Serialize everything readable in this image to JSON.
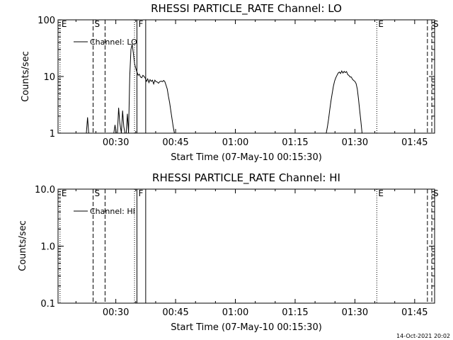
{
  "chart_data": [
    {
      "type": "line",
      "title": "RHESSI PARTICLE_RATE Channel: LO",
      "xlabel": "Start Time (07-May-10 00:15:30)",
      "ylabel": "Counts/sec",
      "yscale": "log",
      "xlim": [
        15.5,
        110
      ],
      "ylim": [
        1,
        100
      ],
      "x_ticks": [
        {
          "t": 30,
          "label": "00:30"
        },
        {
          "t": 45,
          "label": "00:45"
        },
        {
          "t": 60,
          "label": "01:00"
        },
        {
          "t": 75,
          "label": "01:15"
        },
        {
          "t": 90,
          "label": "01:30"
        },
        {
          "t": 105,
          "label": "01:45"
        }
      ],
      "y_ticks": [
        {
          "v": 1,
          "label": "1"
        },
        {
          "v": 10,
          "label": "10"
        },
        {
          "v": 100,
          "label": "100"
        }
      ],
      "legend": {
        "position": "top-left",
        "entries": [
          "Channel: LO"
        ]
      },
      "series": [
        {
          "name": "Channel: LO",
          "x": [
            22.6,
            22.9,
            23.2,
            29.5,
            29.8,
            30.1,
            30.4,
            30.7,
            31.0,
            31.4,
            31.7,
            32.0,
            32.3,
            32.6,
            32.9,
            33.2,
            33.5,
            33.8,
            34.1,
            34.4,
            34.7,
            35.0,
            35.3,
            35.6,
            35.9,
            36.2,
            36.5,
            36.8,
            37.1,
            37.4,
            37.7,
            38.0,
            38.3,
            38.6,
            38.9,
            39.2,
            39.5,
            39.8,
            40.1,
            40.4,
            40.7,
            41.0,
            41.4,
            41.7,
            42.0,
            42.3,
            42.6,
            42.9,
            43.2,
            43.5,
            43.8,
            44.1,
            44.4,
            44.7
          ],
          "y": [
            1,
            1.9,
            1,
            1,
            1.4,
            1,
            1,
            2.8,
            1.5,
            1,
            2.5,
            1.3,
            1,
            1,
            2.2,
            1,
            10,
            30,
            37,
            26,
            17,
            14,
            12,
            10.5,
            11,
            9.8,
            9.5,
            10.5,
            10,
            9.3,
            8.2,
            9.1,
            7.8,
            8.8,
            8.2,
            8.6,
            7.4,
            8.6,
            8.1,
            8.0,
            7.6,
            8.1,
            8.3,
            8.1,
            8.5,
            8.1,
            7.0,
            6.0,
            4.5,
            3.5,
            2.5,
            1.8,
            1.3,
            1
          ]
        },
        {
          "name": "Channel: LO",
          "x": [
            82.8,
            83.1,
            83.4,
            83.7,
            84.0,
            84.3,
            84.6,
            84.9,
            85.2,
            85.5,
            85.8,
            86.1,
            86.4,
            86.7,
            87.0,
            87.3,
            87.6,
            87.9,
            88.2,
            88.5,
            88.8,
            89.1,
            89.4,
            89.7,
            90.0,
            90.3,
            90.6,
            90.9,
            91.2,
            91.5,
            91.8
          ],
          "y": [
            1,
            1.3,
            1.8,
            2.6,
            3.7,
            5,
            6.7,
            8.3,
            9.5,
            10.5,
            11.5,
            12,
            11.3,
            12.5,
            11.5,
            12.3,
            11.7,
            12.2,
            10.8,
            10.4,
            9.8,
            9.8,
            8.9,
            8.5,
            8.2,
            7.5,
            6,
            4,
            2.5,
            1.6,
            1
          ]
        }
      ],
      "markers": [
        {
          "t": 16,
          "label": "E",
          "style": "dotted"
        },
        {
          "t": 24.3,
          "label": "S",
          "style": "dashed"
        },
        {
          "t": 27.3,
          "label": "",
          "style": "dashed"
        },
        {
          "t": 34.7,
          "label": "",
          "style": "dotted"
        },
        {
          "t": 35.3,
          "label": "F",
          "style": "solid"
        },
        {
          "t": 37.5,
          "label": "",
          "style": "solid"
        },
        {
          "t": 95.5,
          "label": "E",
          "style": "dotted"
        },
        {
          "t": 108.2,
          "label": "",
          "style": "dashed"
        },
        {
          "t": 109.3,
          "label": "S",
          "style": "dashed"
        }
      ]
    },
    {
      "type": "line",
      "title": "RHESSI PARTICLE_RATE Channel: HI",
      "xlabel": "Start Time (07-May-10 00:15:30)",
      "ylabel": "Counts/sec",
      "yscale": "log",
      "xlim": [
        15.5,
        110
      ],
      "ylim": [
        0.1,
        10
      ],
      "x_ticks": [
        {
          "t": 30,
          "label": "00:30"
        },
        {
          "t": 45,
          "label": "00:45"
        },
        {
          "t": 60,
          "label": "01:00"
        },
        {
          "t": 75,
          "label": "01:15"
        },
        {
          "t": 90,
          "label": "01:30"
        },
        {
          "t": 105,
          "label": "01:45"
        }
      ],
      "y_ticks": [
        {
          "v": 0.1,
          "label": "0.1"
        },
        {
          "v": 1,
          "label": "1.0"
        },
        {
          "v": 10,
          "label": "10.0"
        }
      ],
      "legend": {
        "position": "top-left",
        "entries": [
          "Channel: HI"
        ]
      },
      "series": [],
      "markers": [
        {
          "t": 16,
          "label": "E",
          "style": "dotted"
        },
        {
          "t": 24.3,
          "label": "S",
          "style": "dashed"
        },
        {
          "t": 27.3,
          "label": "",
          "style": "dashed"
        },
        {
          "t": 34.7,
          "label": "",
          "style": "dotted"
        },
        {
          "t": 35.3,
          "label": "F",
          "style": "solid"
        },
        {
          "t": 37.5,
          "label": "",
          "style": "solid"
        },
        {
          "t": 95.5,
          "label": "E",
          "style": "dotted"
        },
        {
          "t": 108.2,
          "label": "",
          "style": "dashed"
        },
        {
          "t": 109.3,
          "label": "S",
          "style": "dashed"
        }
      ]
    }
  ],
  "footer": {
    "timestamp": "14-Oct-2021 20:02"
  }
}
